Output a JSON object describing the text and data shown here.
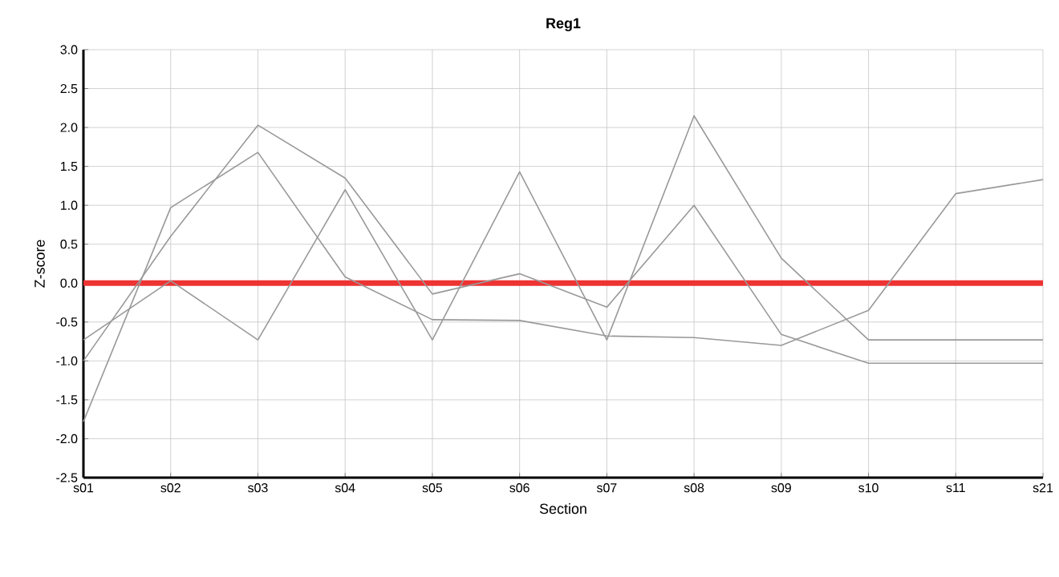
{
  "chart_data": {
    "type": "line",
    "title": "Reg1",
    "xlabel": "Section",
    "ylabel": "Z-score",
    "categories": [
      "s01",
      "s02",
      "s03",
      "s04",
      "s05",
      "s06",
      "s07",
      "s08",
      "s09",
      "s10",
      "s11",
      "s21"
    ],
    "series": [
      {
        "color": "#999999",
        "values": [
          -1.0,
          0.6,
          2.03,
          1.35,
          -0.14,
          0.12,
          -0.31,
          1.0,
          -0.66,
          -1.03,
          -1.03,
          -1.03
        ]
      },
      {
        "color": "#999999",
        "values": [
          -1.78,
          0.97,
          1.68,
          0.08,
          -0.47,
          -0.48,
          -0.68,
          -0.7,
          -0.8,
          -0.35,
          1.15,
          1.33
        ]
      },
      {
        "color": "#999999",
        "values": [
          -0.73,
          0.03,
          -0.73,
          1.2,
          -0.73,
          1.43,
          -0.73,
          2.15,
          0.32,
          -0.73,
          -0.73,
          -0.73
        ]
      }
    ],
    "ylim": [
      -2.5,
      3.0
    ],
    "yticks": [
      {
        "value": -2.5,
        "label": "-2.5"
      },
      {
        "value": -2,
        "label": "-2.0"
      },
      {
        "value": -1.5,
        "label": "-1.5"
      },
      {
        "value": -1,
        "label": "-1.0"
      },
      {
        "value": -0.5,
        "label": "-0.5"
      },
      {
        "value": 0,
        "label": "0.0"
      },
      {
        "value": 0.5,
        "label": "0.5"
      },
      {
        "value": 1,
        "label": "1.0"
      },
      {
        "value": 1.5,
        "label": "1.5"
      },
      {
        "value": 2,
        "label": "2.0"
      },
      {
        "value": 2.5,
        "label": "2.5"
      },
      {
        "value": 3,
        "label": "3.0"
      }
    ],
    "grid": true,
    "marker": "none",
    "line_style": "solid",
    "ref_lines": [
      {
        "axis": "y",
        "value": 0,
        "color": "#ee3333"
      }
    ]
  }
}
